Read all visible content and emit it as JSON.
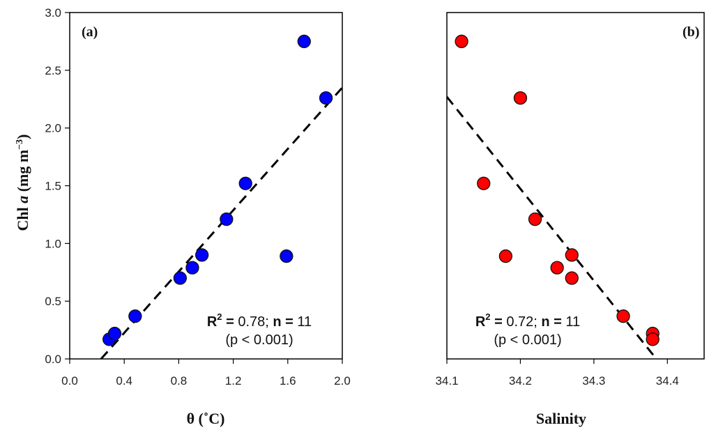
{
  "chart_data": [
    {
      "type": "scatter",
      "panel_label": "(a)",
      "xlabel": "θ (˚C)",
      "ylabel_parts": {
        "prefix": "Chl ",
        "italic": "a",
        "unit": " (mg m",
        "sup": "−3",
        "close": ")"
      },
      "xlim": [
        0.0,
        2.0
      ],
      "ylim": [
        0.0,
        3.0
      ],
      "xticks": [
        "0.0",
        "0.4",
        "0.8",
        "1.2",
        "1.6",
        "2.0"
      ],
      "yticks": [
        "0.0",
        "0.5",
        "1.0",
        "1.5",
        "2.0",
        "2.5",
        "3.0"
      ],
      "marker_color": "#0000ff",
      "points": [
        {
          "x": 0.29,
          "y": 0.17
        },
        {
          "x": 0.33,
          "y": 0.22
        },
        {
          "x": 0.48,
          "y": 0.37
        },
        {
          "x": 0.81,
          "y": 0.7
        },
        {
          "x": 0.9,
          "y": 0.79
        },
        {
          "x": 0.97,
          "y": 0.9
        },
        {
          "x": 1.15,
          "y": 1.21
        },
        {
          "x": 1.29,
          "y": 1.52
        },
        {
          "x": 1.59,
          "y": 0.89
        },
        {
          "x": 1.72,
          "y": 2.75
        },
        {
          "x": 1.88,
          "y": 2.26
        }
      ],
      "fit_line": {
        "x1": 0.23,
        "y1": 0.0,
        "x2": 2.0,
        "y2": 2.35
      },
      "stats": {
        "r2_label": "R",
        "r2_sup": "2",
        "r2_eq": " =",
        "r2_value": " 0.78;",
        "n_label": " n =",
        "n_value": " 11",
        "p_text": "(p < 0.001)"
      }
    },
    {
      "type": "scatter",
      "panel_label": "(b)",
      "xlabel": "Salinity",
      "xlim": [
        34.1,
        34.45
      ],
      "ylim": [
        0.0,
        3.0
      ],
      "xticks": [
        "34.1",
        "34.2",
        "34.3",
        "34.4"
      ],
      "xtick_values": [
        34.1,
        34.2,
        34.3,
        34.4
      ],
      "marker_color": "#ff0000",
      "points": [
        {
          "x": 34.12,
          "y": 2.75
        },
        {
          "x": 34.2,
          "y": 2.26
        },
        {
          "x": 34.15,
          "y": 1.52
        },
        {
          "x": 34.22,
          "y": 1.21
        },
        {
          "x": 34.27,
          "y": 0.9
        },
        {
          "x": 34.18,
          "y": 0.89
        },
        {
          "x": 34.25,
          "y": 0.79
        },
        {
          "x": 34.27,
          "y": 0.7
        },
        {
          "x": 34.34,
          "y": 0.37
        },
        {
          "x": 34.38,
          "y": 0.22
        },
        {
          "x": 34.38,
          "y": 0.17
        }
      ],
      "fit_line": {
        "x1": 34.1,
        "y1": 2.27,
        "x2": 34.385,
        "y2": 0.0
      },
      "stats": {
        "r2_label": "R",
        "r2_sup": "2",
        "r2_eq": " =",
        "r2_value": " 0.72;",
        "n_label": " n =",
        "n_value": " 11",
        "p_text": "(p < 0.001)"
      }
    }
  ]
}
